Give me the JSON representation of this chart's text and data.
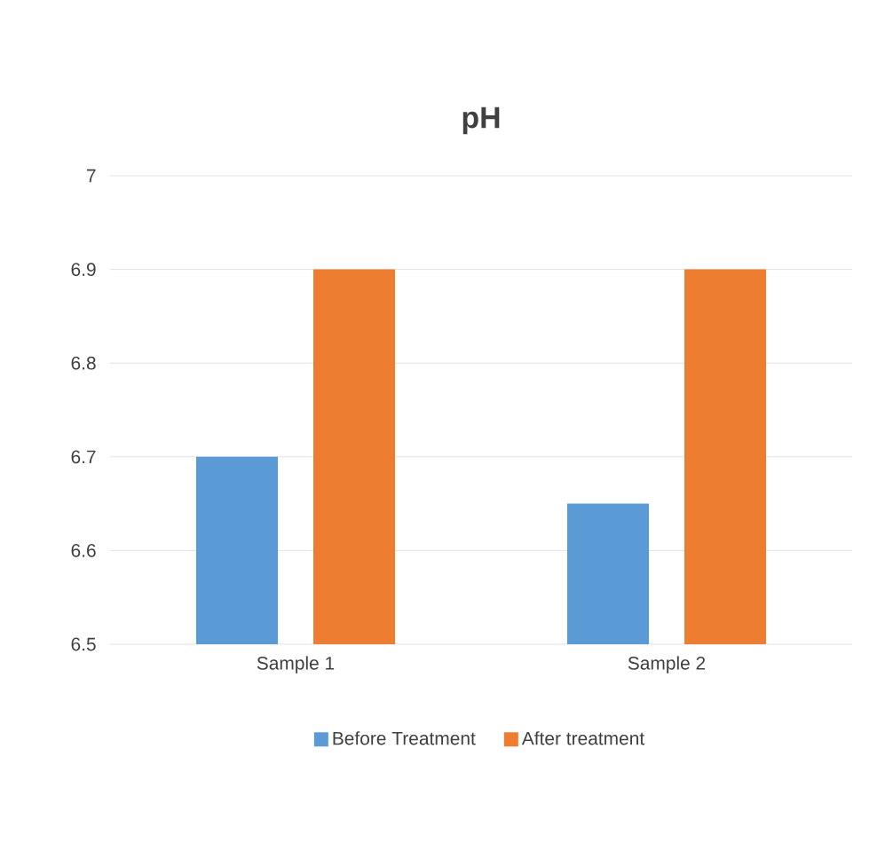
{
  "chart_data": {
    "type": "bar",
    "title": "pH",
    "categories": [
      "Sample 1",
      "Sample 2"
    ],
    "series": [
      {
        "name": "Before Treatment",
        "color": "#5b9bd5",
        "values": [
          6.7,
          6.65
        ]
      },
      {
        "name": "After treatment",
        "color": "#ed7d31",
        "values": [
          6.9,
          6.9
        ]
      }
    ],
    "ylim": [
      6.5,
      7
    ],
    "yticks": [
      6.5,
      6.6,
      6.7,
      6.8,
      6.9,
      7
    ],
    "grid": "y",
    "legend": "bottom"
  }
}
